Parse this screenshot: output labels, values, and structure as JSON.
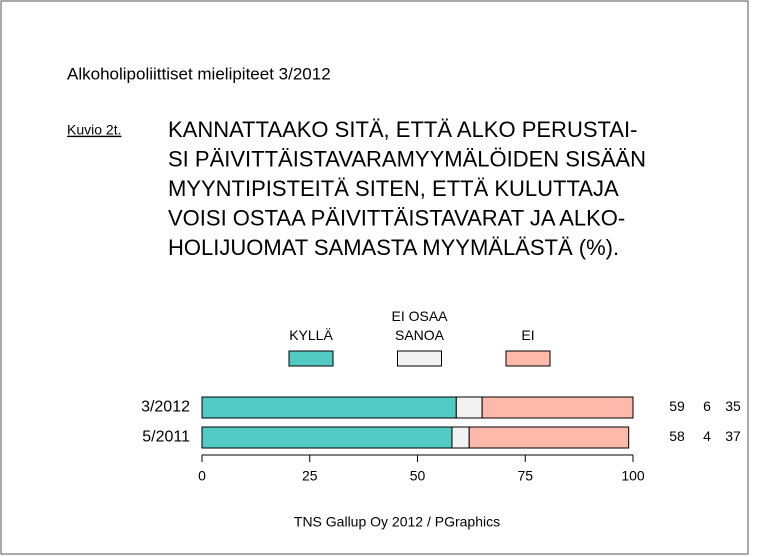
{
  "chart_data": {
    "type": "stacked-bar-horizontal",
    "title": "Alkoholipoliittiset mielipiteet 3/2012",
    "figure_label": "Kuvio 2t.",
    "question": [
      "KANNATTAAKO SITÄ, ETTÄ ALKO PERUSTAI-",
      "SI PÄIVITTÄISTAVARAMYYMÄLÖIDEN SISÄÄN",
      "MYYNTIPISTEITÄ SITEN, ETTÄ KULUTTAJA",
      "VOISI OSTAA PÄIVITTÄISTAVARAT JA ALKO-",
      "HOLIJUOMAT SAMASTA MYYMÄLÄSTÄ (%)."
    ],
    "categories": [
      "3/2012",
      "5/2011"
    ],
    "series": [
      {
        "name": "KYLLÄ",
        "color": "#52cbc4",
        "values": [
          59,
          58
        ]
      },
      {
        "name": "EI OSAA SANOA",
        "color": "#f2f2f2",
        "values": [
          6,
          4
        ]
      },
      {
        "name": "EI",
        "color": "#ffb9aa",
        "values": [
          35,
          37
        ]
      }
    ],
    "xlim": [
      0,
      100
    ],
    "xticks": [
      0,
      25,
      50,
      75,
      100
    ],
    "source": "TNS Gallup Oy 2012 / PGraphics"
  }
}
